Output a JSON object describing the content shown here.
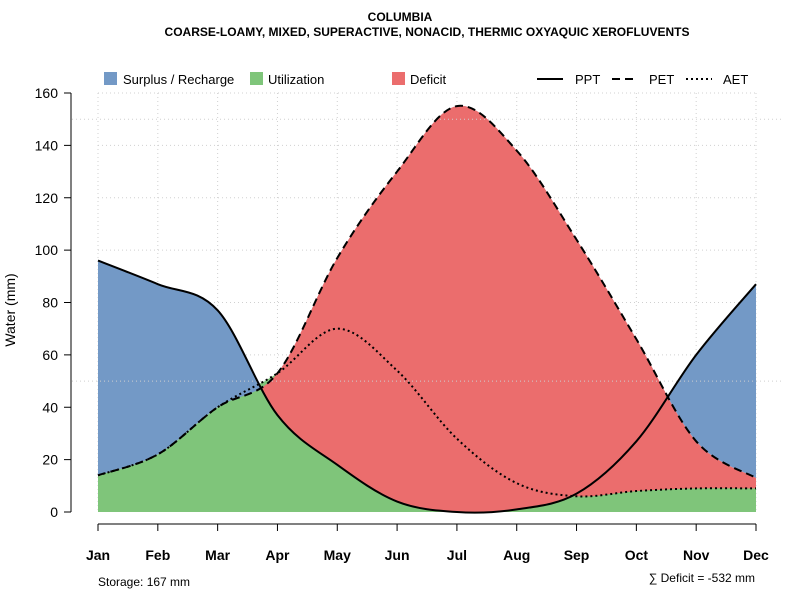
{
  "chart_data": {
    "type": "area",
    "title": "COLUMBIA",
    "subtitle": "COARSE-LOAMY, MIXED, SUPERACTIVE, NONACID, THERMIC OXYAQUIC XEROFLUVENTS",
    "xlabel": "",
    "ylabel": "Water (mm)",
    "ylim": [
      0,
      160
    ],
    "yticks": [
      0,
      20,
      40,
      60,
      80,
      100,
      120,
      140,
      160
    ],
    "categories": [
      "Jan",
      "Feb",
      "Mar",
      "Apr",
      "May",
      "Jun",
      "Jul",
      "Aug",
      "Sep",
      "Oct",
      "Nov",
      "Dec"
    ],
    "grid": true,
    "series": [
      {
        "name": "PPT",
        "style": "solid",
        "values": [
          96,
          87,
          77,
          37,
          18,
          4,
          0,
          1,
          7,
          27,
          60,
          87
        ]
      },
      {
        "name": "PET",
        "style": "dashed",
        "values": [
          14,
          22,
          40,
          53,
          97,
          130,
          155,
          138,
          104,
          66,
          27,
          13
        ]
      },
      {
        "name": "AET",
        "style": "dotted",
        "values": [
          14,
          22,
          40,
          53,
          70,
          54,
          28,
          11,
          6,
          8,
          9,
          9
        ]
      }
    ],
    "reference_lines": [
      50,
      150
    ],
    "legend": {
      "placement": "top",
      "areas": [
        {
          "label": "Surplus / Recharge",
          "color": "#7399C6"
        },
        {
          "label": "Utilization",
          "color": "#7FC57A"
        },
        {
          "label": "Deficit",
          "color": "#EB6D6D"
        }
      ],
      "lines": [
        {
          "label": "PPT",
          "style": "solid"
        },
        {
          "label": "PET",
          "style": "dashed"
        },
        {
          "label": "AET",
          "style": "dotted"
        }
      ]
    },
    "footer_left": "Storage: 167 mm",
    "footer_right": "∑ Deficit = -532 mm"
  }
}
